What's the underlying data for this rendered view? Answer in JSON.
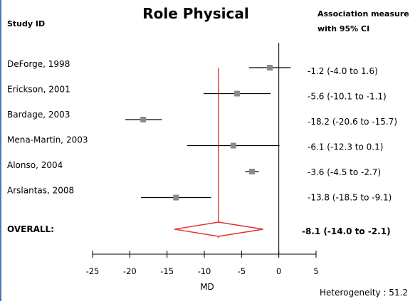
{
  "chart_data": {
    "type": "forest",
    "title": "Role Physical",
    "headers": {
      "study": "Study ID",
      "measure_line1": "Association measure",
      "measure_line2": "with 95% CI"
    },
    "xlabel": "MD",
    "xlim": [
      -25,
      5
    ],
    "xticks": [
      -25,
      -20,
      -15,
      -10,
      -5,
      0,
      5
    ],
    "xtick_labels": [
      "-25",
      "-20",
      "-15",
      "-10",
      "-5",
      "0",
      "5"
    ],
    "studies": [
      {
        "name": "DeForge, 1998",
        "estimate": -1.2,
        "lower": -4.0,
        "upper": 1.6,
        "label": "-1.2 (-4.0  to  1.6)"
      },
      {
        "name": "Erickson, 2001",
        "estimate": -5.6,
        "lower": -10.1,
        "upper": -1.1,
        "label": "-5.6 (-10.1  to  -1.1)"
      },
      {
        "name": "Bardage, 2003",
        "estimate": -18.2,
        "lower": -20.6,
        "upper": -15.7,
        "label": "-18.2 (-20.6  to  -15.7)"
      },
      {
        "name": "Mena-Martin, 2003",
        "estimate": -6.1,
        "lower": -12.3,
        "upper": 0.1,
        "label": "-6.1 (-12.3  to  0.1)"
      },
      {
        "name": "Alonso, 2004",
        "estimate": -3.6,
        "lower": -4.5,
        "upper": -2.7,
        "label": "-3.6 (-4.5  to  -2.7)"
      },
      {
        "name": "Arslantas, 2008",
        "estimate": -13.8,
        "lower": -18.5,
        "upper": -9.1,
        "label": "-13.8 (-18.5  to  -9.1)"
      }
    ],
    "overall": {
      "name": "OVERALL:",
      "estimate": -8.1,
      "lower": -14.0,
      "upper": -2.1,
      "label": "-8.1 (-14.0 to -2.1)"
    },
    "heterogeneity": "Heterogeneity : 51.2",
    "colors": {
      "overall": "#e03030",
      "marker": "#8a8a8a",
      "line": "#000000",
      "frame": "#4a78b8"
    }
  }
}
